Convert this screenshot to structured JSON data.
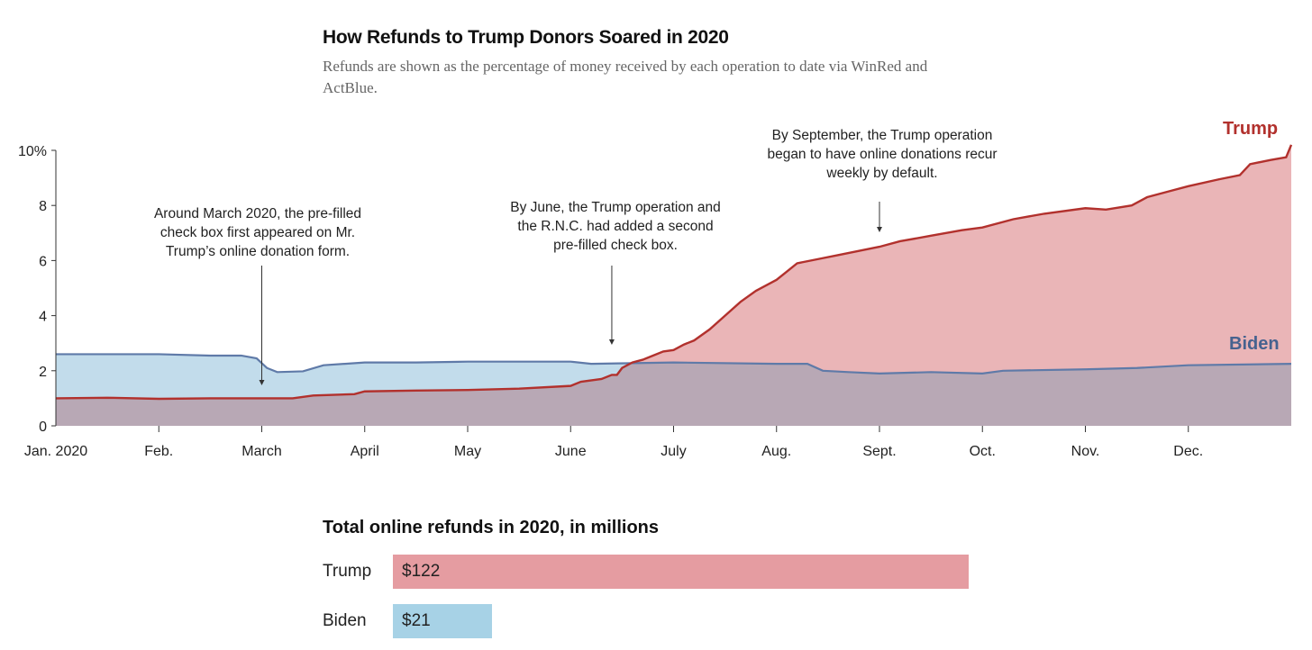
{
  "chart_data": {
    "type": "area",
    "title": "How Refunds to Trump Donors Soared in 2020",
    "subtitle": "Refunds are shown as the percentage of money received by each operation to date via WinRed and ActBlue.",
    "xlabel": "",
    "ylabel": "",
    "ylim": [
      0,
      10
    ],
    "yticks": [
      {
        "v": 10,
        "label": "10%"
      },
      {
        "v": 8,
        "label": "8"
      },
      {
        "v": 6,
        "label": "6"
      },
      {
        "v": 4,
        "label": "4"
      },
      {
        "v": 2,
        "label": "2"
      },
      {
        "v": 0,
        "label": "0"
      }
    ],
    "xlim": [
      0,
      12
    ],
    "xticks": [
      {
        "m": 0,
        "label": "Jan. 2020"
      },
      {
        "m": 1,
        "label": "Feb."
      },
      {
        "m": 2,
        "label": "March"
      },
      {
        "m": 3,
        "label": "April"
      },
      {
        "m": 4,
        "label": "May"
      },
      {
        "m": 5,
        "label": "June"
      },
      {
        "m": 6,
        "label": "July"
      },
      {
        "m": 7,
        "label": "Aug."
      },
      {
        "m": 8,
        "label": "Sept."
      },
      {
        "m": 9,
        "label": "Oct."
      },
      {
        "m": 10,
        "label": "Nov."
      },
      {
        "m": 11,
        "label": "Dec."
      }
    ],
    "series": [
      {
        "name": "Trump",
        "color": "#b2312d",
        "fill": "#eab5b7",
        "points": [
          [
            0,
            1.0
          ],
          [
            0.5,
            1.02
          ],
          [
            1,
            0.98
          ],
          [
            1.5,
            1.0
          ],
          [
            2,
            1.0
          ],
          [
            2.3,
            1.0
          ],
          [
            2.5,
            1.1
          ],
          [
            2.9,
            1.15
          ],
          [
            3,
            1.25
          ],
          [
            3.5,
            1.28
          ],
          [
            4,
            1.3
          ],
          [
            4.5,
            1.35
          ],
          [
            5,
            1.45
          ],
          [
            5.1,
            1.6
          ],
          [
            5.3,
            1.7
          ],
          [
            5.4,
            1.85
          ],
          [
            5.45,
            1.85
          ],
          [
            5.5,
            2.1
          ],
          [
            5.6,
            2.3
          ],
          [
            5.7,
            2.4
          ],
          [
            5.8,
            2.55
          ],
          [
            5.9,
            2.7
          ],
          [
            6,
            2.75
          ],
          [
            6.1,
            2.95
          ],
          [
            6.2,
            3.1
          ],
          [
            6.35,
            3.5
          ],
          [
            6.5,
            4.0
          ],
          [
            6.65,
            4.5
          ],
          [
            6.8,
            4.9
          ],
          [
            6.9,
            5.1
          ],
          [
            7,
            5.3
          ],
          [
            7.1,
            5.6
          ],
          [
            7.2,
            5.9
          ],
          [
            7.4,
            6.05
          ],
          [
            7.6,
            6.2
          ],
          [
            7.8,
            6.35
          ],
          [
            8,
            6.5
          ],
          [
            8.2,
            6.7
          ],
          [
            8.5,
            6.9
          ],
          [
            8.8,
            7.1
          ],
          [
            9,
            7.2
          ],
          [
            9.3,
            7.5
          ],
          [
            9.6,
            7.7
          ],
          [
            10,
            7.9
          ],
          [
            10.2,
            7.85
          ],
          [
            10.45,
            8.0
          ],
          [
            10.6,
            8.3
          ],
          [
            10.8,
            8.5
          ],
          [
            11,
            8.7
          ],
          [
            11.3,
            8.95
          ],
          [
            11.5,
            9.1
          ],
          [
            11.6,
            9.5
          ],
          [
            11.8,
            9.65
          ],
          [
            11.95,
            9.75
          ],
          [
            12,
            10.2
          ]
        ]
      },
      {
        "name": "Biden",
        "color": "#5f7aa8",
        "fill": "#c2dceb",
        "points": [
          [
            0,
            2.6
          ],
          [
            1,
            2.6
          ],
          [
            1.5,
            2.55
          ],
          [
            1.8,
            2.55
          ],
          [
            1.95,
            2.45
          ],
          [
            2.05,
            2.1
          ],
          [
            2.15,
            1.95
          ],
          [
            2.4,
            1.98
          ],
          [
            2.6,
            2.2
          ],
          [
            3,
            2.3
          ],
          [
            3.5,
            2.3
          ],
          [
            4,
            2.33
          ],
          [
            5,
            2.33
          ],
          [
            5.2,
            2.25
          ],
          [
            6,
            2.3
          ],
          [
            7,
            2.25
          ],
          [
            7.3,
            2.25
          ],
          [
            7.45,
            2.0
          ],
          [
            7.7,
            1.95
          ],
          [
            8,
            1.9
          ],
          [
            8.5,
            1.95
          ],
          [
            9,
            1.9
          ],
          [
            9.2,
            2.0
          ],
          [
            10,
            2.05
          ],
          [
            10.5,
            2.1
          ],
          [
            11,
            2.2
          ],
          [
            12,
            2.25
          ]
        ]
      }
    ],
    "overlap_fill": "#b8a8b5",
    "annotations": [
      {
        "text": "Around March 2020, the pre-filled check box first appeared on Mr. Trump’s online donation form.",
        "m": 2
      },
      {
        "text": "By June, the Trump operation and the R.N.C. had added a second pre-filled check box.",
        "m": 5.4
      },
      {
        "text": "By September, the Trump operation began to have online donations recur weekly by default.",
        "m": 8
      }
    ],
    "bar_chart": {
      "type": "bar",
      "title": "Total online refunds in 2020, in millions",
      "categories": [
        "Trump",
        "Biden"
      ],
      "values": [
        122,
        21
      ],
      "labels": [
        "$122",
        "$21"
      ],
      "colors": [
        "#e59ca1",
        "#a7d2e6"
      ]
    }
  }
}
